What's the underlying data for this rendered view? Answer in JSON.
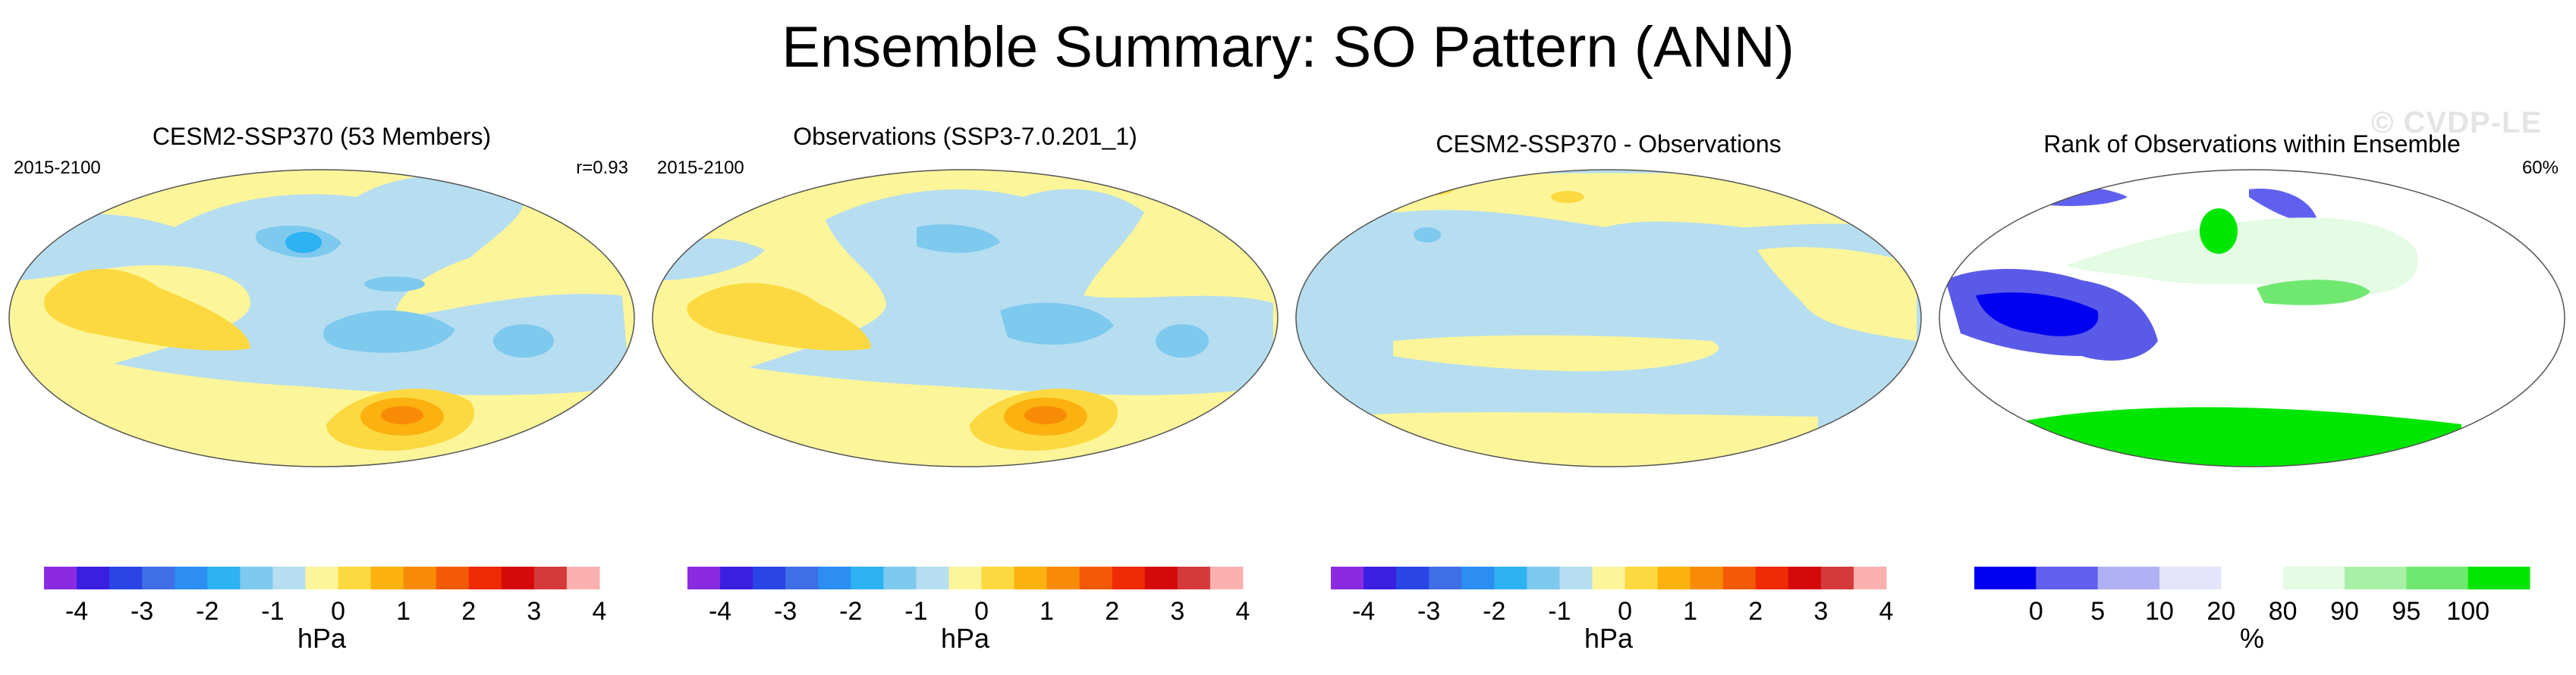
{
  "figure": {
    "title": "Ensemble Summary: SO Pattern (ANN)",
    "watermark": "© CVDP-LE"
  },
  "colors": {
    "ocean_neutral_pos": "#fcf59a",
    "ocean_neutral_neg": "#b6def0",
    "rank_low": "#2b2be0",
    "rank_mid": "#ffffff",
    "rank_high": "#00e600"
  },
  "panels": [
    {
      "title": "CESM2-SSP370 (53 Members)",
      "left_label": "2015-2100",
      "right_label": "r=0.93",
      "units": "hPa",
      "colorbar_ticks": [
        "-4",
        "-3",
        "-2",
        "-1",
        "0",
        "1",
        "2",
        "3",
        "4"
      ]
    },
    {
      "title": "Observations (SSP3-7.0.201_1)",
      "left_label": "2015-2100",
      "right_label": "",
      "units": "hPa",
      "colorbar_ticks": [
        "-4",
        "-3",
        "-2",
        "-1",
        "0",
        "1",
        "2",
        "3",
        "4"
      ]
    },
    {
      "title": "CESM2-SSP370 - Observations",
      "left_label": "",
      "right_label": "",
      "units": "hPa",
      "colorbar_ticks": [
        "-4",
        "-3",
        "-2",
        "-1",
        "0",
        "1",
        "2",
        "3",
        "4"
      ]
    },
    {
      "title": "Rank of Observations within Ensemble",
      "left_label": "",
      "right_label": "60%",
      "units": "%",
      "colorbar_ticks": [
        "0",
        "5",
        "10",
        "20",
        "80",
        "90",
        "95",
        "100"
      ]
    }
  ],
  "colorbar_hpa": [
    "#8a2be2",
    "#3a1fe0",
    "#2a45e6",
    "#3e6fe6",
    "#2b8ef0",
    "#2db2f2",
    "#7ec9ee",
    "#b6def0",
    "#fcf59a",
    "#fcd940",
    "#fbb10f",
    "#f88b05",
    "#f45a05",
    "#ef2a05",
    "#d40a0a",
    "#d43a3a",
    "#fbb0b0"
  ],
  "colorbar_rank": [
    "#0000f0",
    "#6060f0",
    "#b0b0f5",
    "#e4e4fa",
    "#ffffff",
    "#e4fbe4",
    "#a8f0a8",
    "#70e870",
    "#00e600"
  ]
}
